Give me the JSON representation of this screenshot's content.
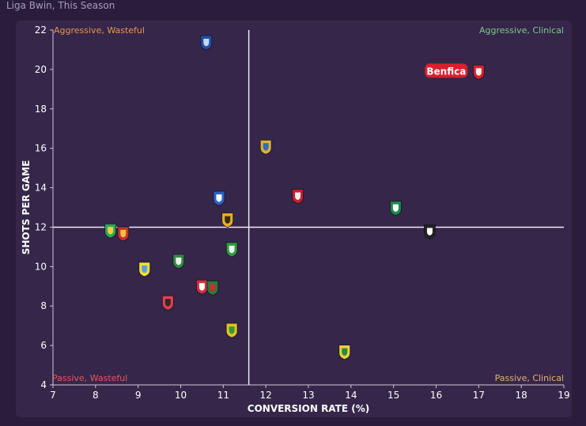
{
  "header": {
    "title": "Liga Bwin, This Season"
  },
  "chart_data": {
    "type": "scatter",
    "title": "",
    "xlabel": "CONVERSION RATE (%)",
    "ylabel": "SHOTS PER GAME",
    "xlim": [
      7,
      19
    ],
    "ylim": [
      4,
      22
    ],
    "xticks": [
      7,
      8,
      9,
      10,
      11,
      12,
      13,
      14,
      15,
      16,
      17,
      18,
      19
    ],
    "yticks": [
      4,
      6,
      8,
      10,
      12,
      14,
      16,
      18,
      20,
      22
    ],
    "reference_lines": {
      "x": 11.6,
      "y": 12
    },
    "quadrants": {
      "top_left": "Aggressive, Wasteful",
      "top_right": "Aggressive, Clinical",
      "bottom_left": "Passive, Wasteful",
      "bottom_right": "Passive, Clinical"
    },
    "colors": {
      "top_left": "#e8954a",
      "top_right": "#7fc98a",
      "bottom_left": "#e05a5a",
      "bottom_right": "#e8b07a",
      "highlight": "#d8202e"
    },
    "highlight_label": "Benfica",
    "points": [
      {
        "x": 17.0,
        "y": 19.9,
        "c1": "#d8202e",
        "c2": "#f2f2f2",
        "highlight": true
      },
      {
        "x": 10.6,
        "y": 21.4,
        "c1": "#1f4fa8",
        "c2": "#c9d6ee"
      },
      {
        "x": 12.0,
        "y": 16.1,
        "c1": "#e0b030",
        "c2": "#2a6fc0"
      },
      {
        "x": 12.75,
        "y": 13.6,
        "c1": "#c8202a",
        "c2": "#f0f0f0"
      },
      {
        "x": 10.9,
        "y": 13.5,
        "c1": "#2a62c8",
        "c2": "#ffffff"
      },
      {
        "x": 15.05,
        "y": 13.0,
        "c1": "#1b8a4a",
        "c2": "#ffffff"
      },
      {
        "x": 11.1,
        "y": 12.4,
        "c1": "#e8b020",
        "c2": "#3a2a10"
      },
      {
        "x": 15.85,
        "y": 11.8,
        "c1": "#222222",
        "c2": "#ffffff"
      },
      {
        "x": 8.35,
        "y": 11.85,
        "c1": "#2ba85a",
        "c2": "#f0d040"
      },
      {
        "x": 8.65,
        "y": 11.7,
        "c1": "#c83030",
        "c2": "#f0c040"
      },
      {
        "x": 11.2,
        "y": 10.9,
        "c1": "#2e9a3e",
        "c2": "#f0f0f0"
      },
      {
        "x": 9.95,
        "y": 10.3,
        "c1": "#2e8a3e",
        "c2": "#f0f0f0"
      },
      {
        "x": 9.15,
        "y": 9.9,
        "c1": "#f0e030",
        "c2": "#5aa0e0"
      },
      {
        "x": 10.5,
        "y": 9.0,
        "c1": "#d03040",
        "c2": "#ffffff"
      },
      {
        "x": 10.75,
        "y": 8.95,
        "c1": "#2a7a3a",
        "c2": "#c83030"
      },
      {
        "x": 9.7,
        "y": 8.2,
        "c1": "#e04050",
        "c2": "#2a2a2a"
      },
      {
        "x": 11.2,
        "y": 6.8,
        "c1": "#e8c020",
        "c2": "#2e9a3e"
      },
      {
        "x": 13.85,
        "y": 5.7,
        "c1": "#e8d040",
        "c2": "#2a8a3a"
      }
    ]
  }
}
